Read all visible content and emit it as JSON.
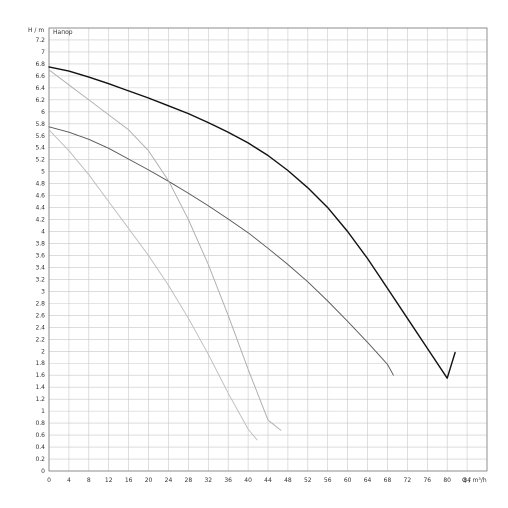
{
  "chart_data": {
    "type": "line",
    "xlabel": "Q / m³/h",
    "ylabel": "H / m",
    "legend_label": "Напор",
    "xlim": [
      0,
      88
    ],
    "ylim": [
      0,
      7.4
    ],
    "x_ticks": [
      0,
      4,
      8,
      12,
      16,
      20,
      24,
      28,
      32,
      36,
      40,
      44,
      48,
      52,
      56,
      60,
      64,
      68,
      72,
      76,
      80,
      84
    ],
    "y_ticks": [
      0,
      0.2,
      0.4,
      0.6,
      0.8,
      1,
      1.2,
      1.4,
      1.6,
      1.8,
      2,
      2.2,
      2.4,
      2.6,
      2.8,
      3,
      3.2,
      3.4,
      3.6,
      3.8,
      4,
      4.2,
      4.4,
      4.6,
      4.8,
      5,
      5.2,
      5.4,
      5.6,
      5.8,
      6,
      6.2,
      6.4,
      6.6,
      6.8,
      7,
      7.2
    ],
    "grid": true,
    "series": [
      {
        "color": "#111111",
        "width": 1.4,
        "x": [
          0,
          4,
          8,
          12,
          16,
          20,
          24,
          28,
          32,
          36,
          40,
          44,
          48,
          52,
          56,
          60,
          64,
          68,
          72,
          76,
          80,
          81.6
        ],
        "y": [
          6.75,
          6.68,
          6.58,
          6.47,
          6.35,
          6.23,
          6.1,
          5.97,
          5.82,
          5.66,
          5.48,
          5.27,
          5.02,
          4.73,
          4.4,
          4.0,
          3.55,
          3.05,
          2.55,
          2.05,
          1.55,
          1.98
        ]
      },
      {
        "color": "#555555",
        "width": 0.9,
        "x": [
          0,
          4,
          8,
          12,
          16,
          20,
          24,
          28,
          32,
          36,
          40,
          44,
          48,
          52,
          56,
          60,
          64,
          68,
          69.2
        ],
        "y": [
          5.75,
          5.66,
          5.54,
          5.39,
          5.21,
          5.03,
          4.84,
          4.64,
          4.43,
          4.21,
          3.98,
          3.72,
          3.45,
          3.16,
          2.84,
          2.5,
          2.15,
          1.78,
          1.6
        ]
      },
      {
        "color": "#aaaaaa",
        "width": 0.9,
        "x": [
          0,
          4,
          8,
          12,
          16,
          20,
          24,
          28,
          32,
          36,
          40,
          44,
          46.6
        ],
        "y": [
          6.7,
          6.45,
          6.2,
          5.95,
          5.7,
          5.35,
          4.85,
          4.2,
          3.45,
          2.6,
          1.7,
          0.85,
          0.68
        ]
      },
      {
        "color": "#bbbbbb",
        "width": 0.9,
        "x": [
          0,
          4,
          8,
          12,
          16,
          20,
          24,
          28,
          32,
          36,
          40,
          41.8
        ],
        "y": [
          5.7,
          5.35,
          4.95,
          4.5,
          4.05,
          3.6,
          3.1,
          2.55,
          1.95,
          1.3,
          0.7,
          0.52
        ]
      }
    ]
  }
}
